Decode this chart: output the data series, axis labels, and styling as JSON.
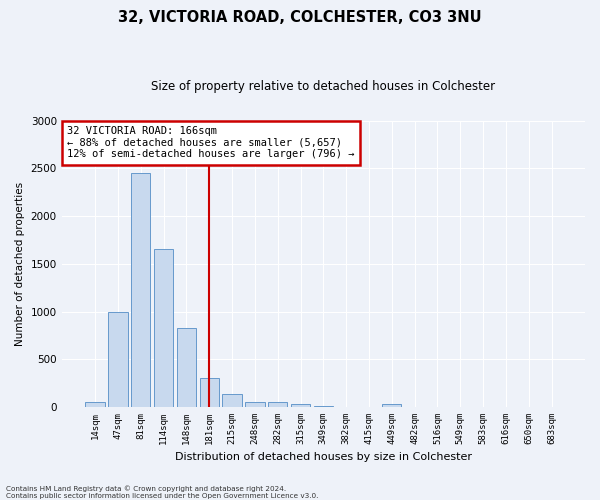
{
  "title1": "32, VICTORIA ROAD, COLCHESTER, CO3 3NU",
  "title2": "Size of property relative to detached houses in Colchester",
  "xlabel": "Distribution of detached houses by size in Colchester",
  "ylabel": "Number of detached properties",
  "categories": [
    "14sqm",
    "47sqm",
    "81sqm",
    "114sqm",
    "148sqm",
    "181sqm",
    "215sqm",
    "248sqm",
    "282sqm",
    "315sqm",
    "349sqm",
    "382sqm",
    "415sqm",
    "449sqm",
    "482sqm",
    "516sqm",
    "549sqm",
    "583sqm",
    "616sqm",
    "650sqm",
    "683sqm"
  ],
  "values": [
    55,
    1000,
    2450,
    1650,
    830,
    300,
    140,
    55,
    50,
    35,
    15,
    5,
    0,
    30,
    0,
    0,
    0,
    0,
    0,
    0,
    0
  ],
  "bar_color": "#c8d9ee",
  "bar_edge_color": "#6699cc",
  "background_color": "#eef2f9",
  "grid_color": "#ffffff",
  "vline_x_index": 5,
  "vline_color": "#cc0000",
  "annotation_text": "32 VICTORIA ROAD: 166sqm\n← 88% of detached houses are smaller (5,657)\n12% of semi-detached houses are larger (796) →",
  "annotation_box_color": "#cc0000",
  "ylim": [
    0,
    3000
  ],
  "yticks": [
    0,
    500,
    1000,
    1500,
    2000,
    2500,
    3000
  ],
  "footer1": "Contains HM Land Registry data © Crown copyright and database right 2024.",
  "footer2": "Contains public sector information licensed under the Open Government Licence v3.0."
}
